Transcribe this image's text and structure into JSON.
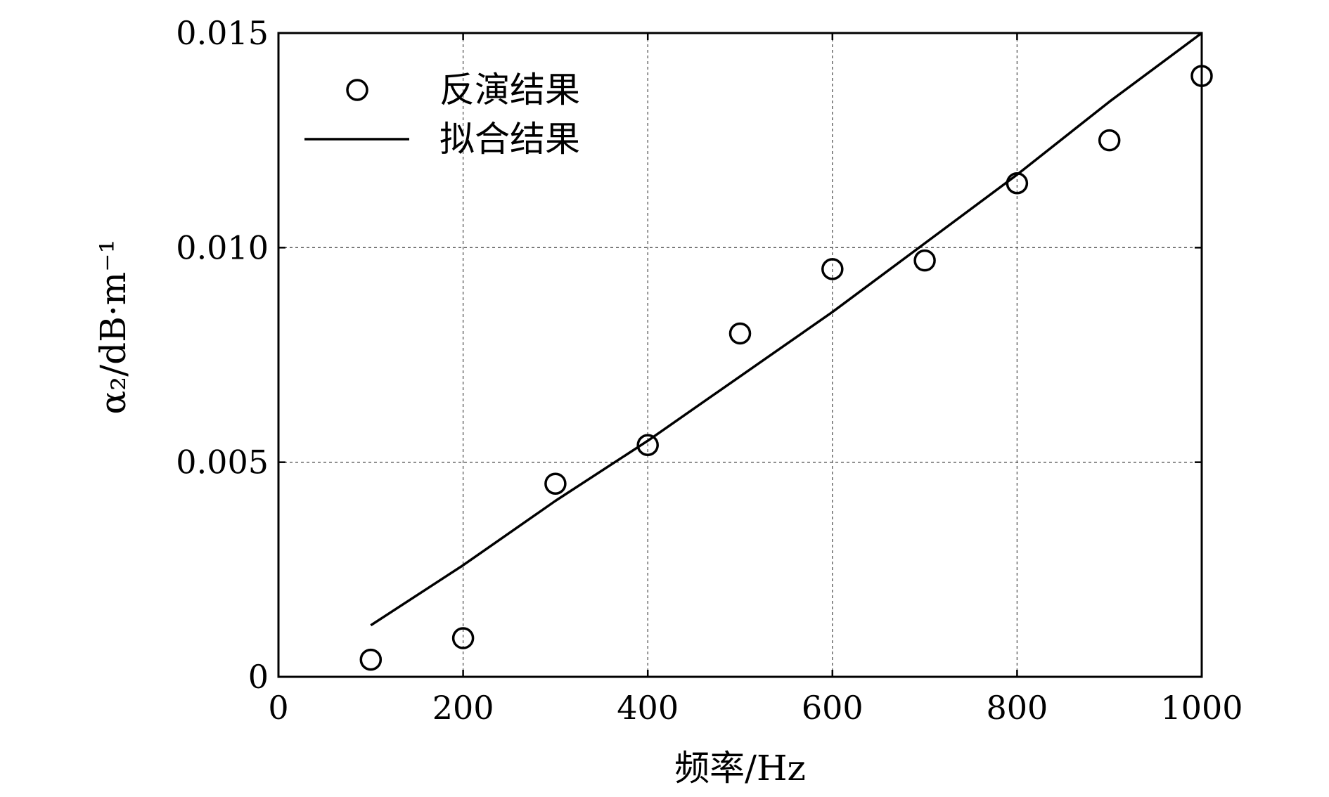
{
  "chart_data": {
    "type": "scatter",
    "xlabel": "频率/Hz",
    "ylabel": "α₂/dB·m⁻¹",
    "xlim": [
      0,
      1000
    ],
    "ylim": [
      0,
      0.015
    ],
    "x_ticks": [
      0,
      200,
      400,
      600,
      800,
      1000
    ],
    "x_tick_labels": [
      "0",
      "200",
      "400",
      "600",
      "800",
      "1000"
    ],
    "y_ticks": [
      0,
      0.005,
      0.01,
      0.015
    ],
    "y_tick_labels": [
      "0",
      "0.005",
      "0.010",
      "0.015"
    ],
    "grid": true,
    "legend_position": "top-left",
    "series": [
      {
        "name": "反演结果",
        "marker": "open-circle",
        "color": "#000000",
        "x": [
          100,
          200,
          300,
          400,
          500,
          600,
          700,
          800,
          900,
          1000
        ],
        "y": [
          0.0004,
          0.0009,
          0.0045,
          0.0054,
          0.008,
          0.0095,
          0.0097,
          0.0115,
          0.0125,
          0.014
        ]
      },
      {
        "name": "拟合结果",
        "marker": "line",
        "color": "#000000",
        "x": [
          100,
          200,
          300,
          400,
          500,
          600,
          700,
          800,
          900,
          1000
        ],
        "y": [
          0.0012,
          0.0026,
          0.0041,
          0.0055,
          0.007,
          0.0085,
          0.0101,
          0.0117,
          0.0134,
          0.015
        ]
      }
    ]
  }
}
